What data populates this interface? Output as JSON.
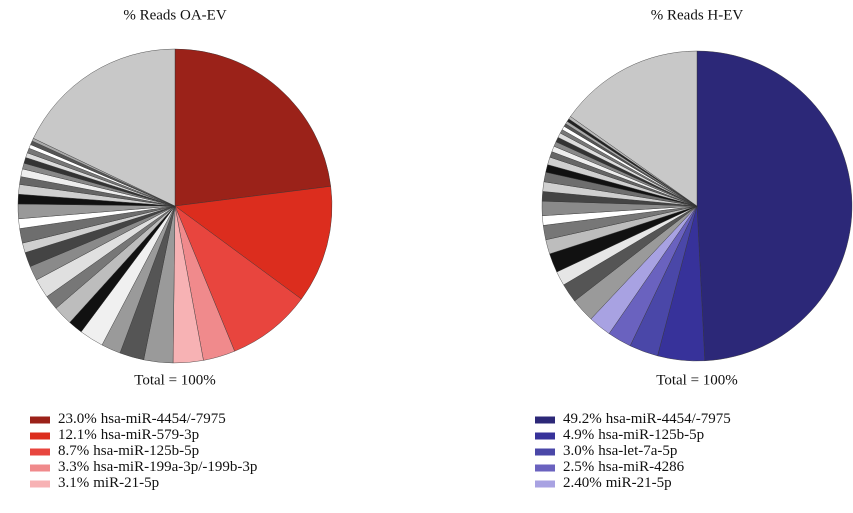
{
  "chart_data": [
    {
      "type": "pie",
      "title": "% Reads OA-EV",
      "annotation": "Total = 100%",
      "categories": [
        "hsa-miR-4454/-7975",
        "hsa-miR-579-3p",
        "hsa-miR-125b-5p",
        "hsa-miR-199a-3p/-199b-3p",
        "miR-21-5p",
        null,
        null,
        null,
        null,
        null,
        null,
        null,
        null,
        null,
        null,
        null,
        null,
        null,
        null,
        null,
        null,
        null,
        null,
        null,
        null,
        null,
        null,
        null,
        null,
        null,
        null
      ],
      "values": [
        23.0,
        12.1,
        8.7,
        3.3,
        3.1,
        3.0,
        2.5,
        2.0,
        2.5,
        1.5,
        2.0,
        1.5,
        2.0,
        1.5,
        1.5,
        1.0,
        1.5,
        1.0,
        1.5,
        1.0,
        1.0,
        0.8,
        0.8,
        0.6,
        0.6,
        0.5,
        0.5,
        0.4,
        0.4,
        0.3,
        17.9
      ],
      "value_labels": [
        "23.0%",
        "12.1%",
        "8.7%",
        "3.3%",
        "3.1%",
        null,
        null,
        null,
        null,
        null,
        null,
        null,
        null,
        null,
        null,
        null,
        null,
        null,
        null,
        null,
        null,
        null,
        null,
        null,
        null,
        null,
        null,
        null,
        null,
        null,
        null
      ],
      "colors": [
        "#9b2219",
        "#dc2d1e",
        "#e8453e",
        "#f08a8c",
        "#f7b2b4",
        "#9a9a9a",
        "#555555",
        "#9a9a9a",
        "#f0f0f0",
        "#111111",
        "#bdbdbd",
        "#777777",
        "#e0e0e0",
        "#8a8a8a",
        "#444444",
        "#d0d0d0",
        "#6e6e6e",
        "#ffffff",
        "#999999",
        "#111111",
        "#cfcfcf",
        "#666666",
        "#eeeeee",
        "#888888",
        "#333333",
        "#dddddd",
        "#777777",
        "#ffffff",
        "#555555",
        "#aaaaaa",
        "#c8c8c8"
      ]
    },
    {
      "type": "pie",
      "title": "% Reads H-EV",
      "annotation": "Total = 100%",
      "categories": [
        "hsa-miR-4454/-7975",
        "hsa-miR-125b-5p",
        "hsa-let-7a-5p",
        "hsa-miR-4286",
        "miR-21-5p",
        null,
        null,
        null,
        null,
        null,
        null,
        null,
        null,
        null,
        null,
        null,
        null,
        null,
        null,
        null,
        null,
        null,
        null,
        null,
        null,
        null,
        null,
        null,
        null,
        null
      ],
      "values": [
        49.2,
        4.9,
        3.0,
        2.5,
        2.4,
        2.5,
        2.0,
        1.5,
        2.0,
        1.5,
        1.5,
        1.0,
        1.5,
        1.0,
        1.0,
        1.0,
        0.8,
        0.8,
        0.6,
        0.6,
        0.5,
        0.5,
        0.5,
        0.4,
        0.4,
        0.3,
        0.3,
        0.3,
        0.3,
        15.2
      ],
      "value_labels": [
        "49.2%",
        "4.9%",
        "3.0%",
        "2.5%",
        "2.40%",
        null,
        null,
        null,
        null,
        null,
        null,
        null,
        null,
        null,
        null,
        null,
        null,
        null,
        null,
        null,
        null,
        null,
        null,
        null,
        null,
        null,
        null,
        null,
        null,
        null
      ],
      "colors": [
        "#2c2878",
        "#37329a",
        "#4a47a8",
        "#6a62bf",
        "#a8a2e2",
        "#9a9a9a",
        "#555555",
        "#e6e6e6",
        "#111111",
        "#bdbdbd",
        "#777777",
        "#ffffff",
        "#8a8a8a",
        "#444444",
        "#d0d0d0",
        "#6e6e6e",
        "#111111",
        "#cfcfcf",
        "#666666",
        "#eeeeee",
        "#888888",
        "#333333",
        "#dddddd",
        "#777777",
        "#ffffff",
        "#555555",
        "#aaaaaa",
        "#222222",
        "#bbbbbb",
        "#c8c8c8"
      ]
    }
  ]
}
